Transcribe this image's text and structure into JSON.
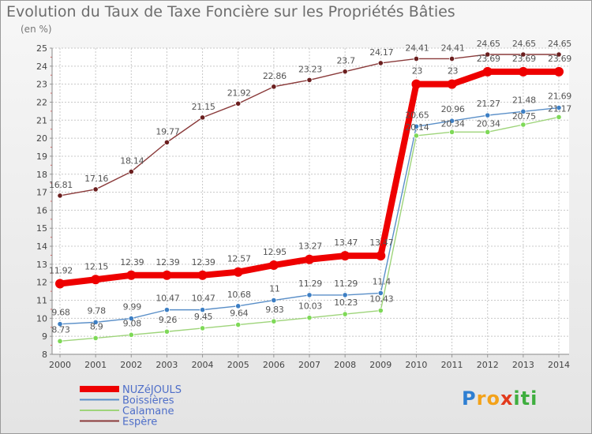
{
  "title": "Evolution du Taux de Taxe Foncière sur les Propriétés Bâties",
  "subtitle": "(en %)",
  "logo": {
    "text": "Proxiti",
    "letters": [
      "P",
      "r",
      "o",
      "x",
      "i",
      "t",
      "i"
    ],
    "colors": [
      "#2e7fd2",
      "#f3a21a",
      "#f3a21a",
      "#e23a1c",
      "#3fae3f",
      "#3fae3f",
      "#3fae3f"
    ]
  },
  "chart_data": {
    "type": "line",
    "x": [
      "2000",
      "2001",
      "2002",
      "2003",
      "2004",
      "2005",
      "2006",
      "2007",
      "2008",
      "2009",
      "2010",
      "2011",
      "2012",
      "2013",
      "2014"
    ],
    "ylim": [
      8,
      25
    ],
    "yticks": [
      "8",
      "9",
      "10",
      "11",
      "12",
      "13",
      "14",
      "15",
      "16",
      "17",
      "18",
      "19",
      "20",
      "21",
      "22",
      "23",
      "24",
      "25"
    ],
    "grid": true,
    "legend_position": "bottom-left",
    "series": [
      {
        "name": "NUZéJOULS",
        "color": "#ee0000",
        "thick": true,
        "values": [
          11.92,
          12.15,
          12.39,
          12.39,
          12.39,
          12.57,
          12.95,
          13.27,
          13.47,
          13.47,
          23,
          23,
          23.69,
          23.69,
          23.69
        ],
        "labels": [
          "11.92",
          "12.15",
          "12.39",
          "12.39",
          "12.39",
          "12.57",
          "12.95",
          "13.27",
          "13.47",
          "13.47",
          "23",
          "23",
          "23.69",
          "23.69",
          "23.69"
        ]
      },
      {
        "name": "Boissières",
        "color": "#5a8fc8",
        "marker": "#3d7fc4",
        "values": [
          9.68,
          9.78,
          9.99,
          10.47,
          10.47,
          10.68,
          11,
          11.29,
          11.29,
          11.4,
          20.65,
          20.96,
          21.27,
          21.48,
          21.69
        ],
        "labels": [
          "9.68",
          "9.78",
          "9.99",
          "10.47",
          "10.47",
          "10.68",
          "11",
          "11.29",
          "11.29",
          "11.4",
          "20.65",
          "20.96",
          "21.27",
          "21.48",
          "21.69"
        ]
      },
      {
        "name": "Calamane",
        "color": "#9ed47a",
        "marker": "#7ed957",
        "values": [
          8.73,
          8.9,
          9.08,
          9.26,
          9.45,
          9.64,
          9.83,
          10.03,
          10.23,
          10.43,
          20.14,
          20.34,
          20.34,
          20.75,
          21.17
        ],
        "labels": [
          "8.73",
          "8.9",
          "9.08",
          "9.26",
          "9.45",
          "9.64",
          "9.83",
          "10.03",
          "10.23",
          "10.43",
          "20.14",
          "20.34",
          "20.34",
          "20.75",
          "21.17"
        ]
      },
      {
        "name": "Espère",
        "color": "#8a3a3a",
        "marker": "#6b1f1f",
        "values": [
          16.81,
          17.16,
          18.14,
          19.77,
          21.15,
          21.92,
          22.86,
          23.23,
          23.7,
          24.17,
          24.41,
          24.41,
          24.65,
          24.65,
          24.65
        ],
        "labels": [
          "16.81",
          "17.16",
          "18.14",
          "19.77",
          "21.15",
          "21.92",
          "22.86",
          "23.23",
          "23.7",
          "24.17",
          "24.41",
          "24.41",
          "24.65",
          "24.65",
          "24.65"
        ]
      }
    ]
  }
}
